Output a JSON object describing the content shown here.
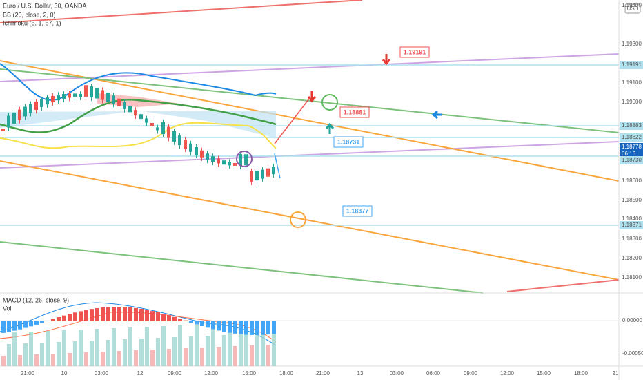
{
  "header": {
    "symbol": "Euro / U.S. Dollar, 30, OANDA",
    "indicators": [
      "BB (20, close, 2, 0)",
      "Ichimoku (5, 1, 57, 1)"
    ]
  },
  "currency": "USD",
  "price_axis": [
    "1.19400",
    "1.19300",
    "1.19191",
    "1.19100",
    "1.19000",
    "1.18883",
    "1.18822",
    "1.18778",
    "06:16",
    "1.18730",
    "1.18600",
    "1.18500",
    "1.18400",
    "1.18371",
    "1.18300",
    "1.18200",
    "1.18100"
  ],
  "time_axis": [
    "21:00",
    "10",
    "03:00",
    "12",
    "09:00",
    "12:00",
    "15:00",
    "18:00",
    "21:00",
    "13",
    "03:00",
    "06:00",
    "09:00",
    "12:00",
    "15:00",
    "18:00",
    "21"
  ],
  "price_tags": [
    "1.19191",
    "1.18881",
    "1.18731",
    "1.18377"
  ],
  "macd": {
    "title": "MACD (12, 26, close, 9)",
    "volume": "Vol",
    "axis": [
      "0.00000",
      "-0.00050"
    ]
  }
}
